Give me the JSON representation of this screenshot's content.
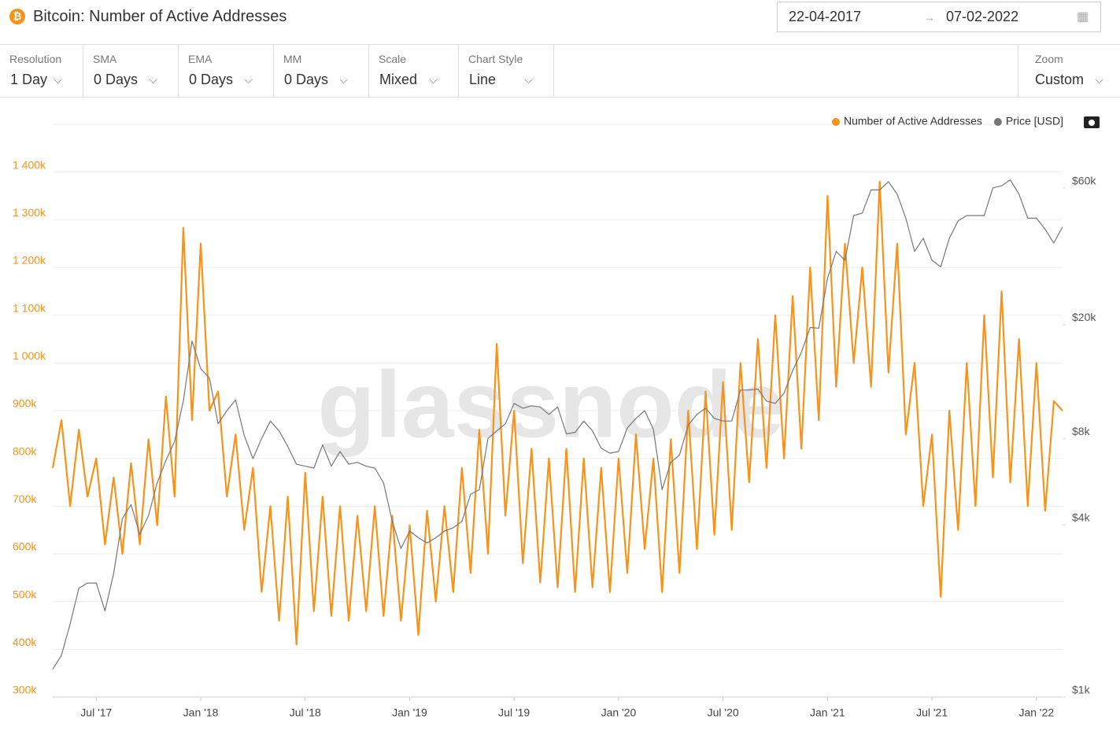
{
  "ui": {
    "title": "Bitcoin: Number of Active Addresses",
    "date_from": "22-04-2017",
    "date_to": "07-02-2022",
    "controls": [
      {
        "label": "Resolution",
        "value": "1 Day"
      },
      {
        "label": "SMA",
        "value": "0 Days"
      },
      {
        "label": "EMA",
        "value": "0 Days"
      },
      {
        "label": "MM",
        "value": "0 Days"
      },
      {
        "label": "Scale",
        "value": "Mixed"
      },
      {
        "label": "Chart Style",
        "value": "Line"
      }
    ],
    "zoom": {
      "label": "Zoom",
      "value": "Custom"
    },
    "watermark": "glassnode"
  },
  "chart_data": {
    "type": "line",
    "categories": [
      null,
      null,
      null,
      null,
      null,
      "Jul '17",
      null,
      null,
      null,
      null,
      null,
      null,
      null,
      null,
      null,
      null,
      null,
      "Jan '18",
      null,
      null,
      null,
      null,
      null,
      null,
      null,
      null,
      null,
      null,
      null,
      "Jul '18",
      null,
      null,
      null,
      null,
      null,
      null,
      null,
      null,
      null,
      null,
      null,
      "Jan '19",
      null,
      null,
      null,
      null,
      null,
      null,
      null,
      null,
      null,
      null,
      null,
      "Jul '19",
      null,
      null,
      null,
      null,
      null,
      null,
      null,
      null,
      null,
      null,
      null,
      "Jan '20",
      null,
      null,
      null,
      null,
      null,
      null,
      null,
      null,
      null,
      null,
      null,
      "Jul '20",
      null,
      null,
      null,
      null,
      null,
      null,
      null,
      null,
      null,
      null,
      null,
      "Jan '21",
      null,
      null,
      null,
      null,
      null,
      null,
      null,
      null,
      null,
      null,
      null,
      "Jul '21",
      null,
      null,
      null,
      null,
      null,
      null,
      null,
      null,
      null,
      null,
      null,
      "Jan '22",
      null,
      null,
      null
    ],
    "series": [
      {
        "name": "Number of Active Addresses",
        "color": "#f7931a",
        "values": [
          780000,
          880000,
          700000,
          860000,
          720000,
          800000,
          620000,
          760000,
          600000,
          790000,
          620000,
          840000,
          660000,
          930000,
          720000,
          1283000,
          880000,
          1250000,
          900000,
          940000,
          720000,
          850000,
          650000,
          780000,
          520000,
          700000,
          460000,
          720000,
          410000,
          770000,
          480000,
          720000,
          470000,
          700000,
          460000,
          680000,
          480000,
          700000,
          470000,
          680000,
          460000,
          660000,
          430000,
          690000,
          500000,
          700000,
          520000,
          780000,
          560000,
          860000,
          600000,
          1040000,
          680000,
          900000,
          580000,
          820000,
          540000,
          800000,
          530000,
          820000,
          520000,
          800000,
          530000,
          780000,
          520000,
          800000,
          560000,
          850000,
          610000,
          800000,
          520000,
          840000,
          560000,
          900000,
          610000,
          940000,
          640000,
          960000,
          650000,
          1000000,
          750000,
          1050000,
          780000,
          1100000,
          800000,
          1140000,
          820000,
          1200000,
          880000,
          1350000,
          950000,
          1250000,
          1000000,
          1200000,
          950000,
          1380000,
          980000,
          1250000,
          850000,
          1000000,
          700000,
          850000,
          510000,
          900000,
          650000,
          1000000,
          700000,
          1100000,
          760000,
          1150000,
          750000,
          1050000,
          700000,
          1000000,
          690000,
          920000,
          900000
        ]
      },
      {
        "name": "Price [USD]",
        "color": "#777777",
        "axis": "y2",
        "values": [
          1250,
          1400,
          1800,
          2400,
          2500,
          2500,
          2000,
          2700,
          4200,
          4700,
          3700,
          4300,
          5600,
          6700,
          7800,
          10800,
          17500,
          14000,
          13000,
          9000,
          10000,
          10900,
          8200,
          6800,
          8000,
          9200,
          8500,
          7500,
          6500,
          6400,
          6300,
          7600,
          6400,
          7200,
          6500,
          6600,
          6400,
          6300,
          5600,
          4100,
          3300,
          3800,
          3600,
          3450,
          3600,
          3800,
          3900,
          4100,
          5100,
          5300,
          8000,
          8500,
          9000,
          10600,
          10200,
          10400,
          10300,
          9700,
          10300,
          8300,
          8400,
          9200,
          8500,
          7400,
          7100,
          7200,
          8700,
          9400,
          10000,
          8600,
          5300,
          6600,
          7000,
          8900,
          9700,
          10200,
          9400,
          9200,
          9200,
          11800,
          11800,
          11900,
          10800,
          10600,
          11500,
          13800,
          16000,
          19500,
          19400,
          29000,
          36000,
          33500,
          48000,
          49000,
          59000,
          59000,
          63000,
          57000,
          47000,
          36000,
          40000,
          33500,
          31800,
          40000,
          46000,
          48000,
          48000,
          48000,
          60000,
          61000,
          64000,
          57000,
          47000,
          47000,
          43000,
          38500,
          43800
        ]
      }
    ],
    "ylim": [
      300000,
      1500000
    ],
    "yticks": [
      {
        "value": 300000,
        "label": "300k"
      },
      {
        "value": 400000,
        "label": "400k"
      },
      {
        "value": 500000,
        "label": "500k"
      },
      {
        "value": 600000,
        "label": "600k"
      },
      {
        "value": 700000,
        "label": "700k"
      },
      {
        "value": 800000,
        "label": "800k"
      },
      {
        "value": 900000,
        "label": "900k"
      },
      {
        "value": 1000000,
        "label": "1 000k"
      },
      {
        "value": 1100000,
        "label": "1 100k"
      },
      {
        "value": 1200000,
        "label": "1 200k"
      },
      {
        "value": 1300000,
        "label": "1 300k"
      },
      {
        "value": 1400000,
        "label": "1 400k"
      }
    ],
    "y2lim": [
      1000,
      100000
    ],
    "y2scale": "log",
    "y2ticks": [
      {
        "value": 1000,
        "label": "$1k"
      },
      {
        "value": 4000,
        "label": "$4k"
      },
      {
        "value": 8000,
        "label": "$8k"
      },
      {
        "value": 20000,
        "label": "$20k"
      },
      {
        "value": 60000,
        "label": "$60k"
      }
    ],
    "grid": true,
    "legend": "top-right"
  }
}
